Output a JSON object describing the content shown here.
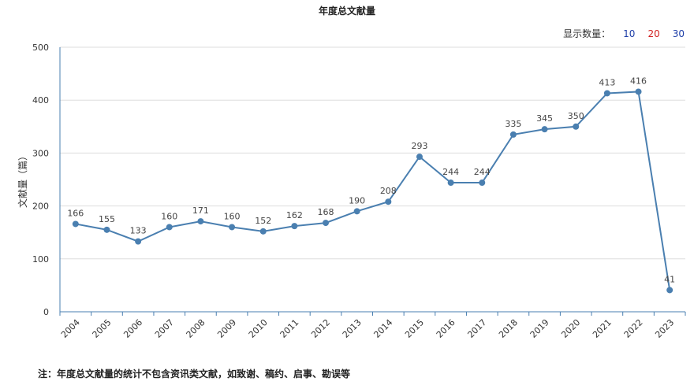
{
  "chart_data": {
    "type": "line",
    "title": "年度总文献量",
    "ylabel": "文献量（篇）",
    "xlabel": "",
    "categories": [
      "2004",
      "2005",
      "2006",
      "2007",
      "2008",
      "2009",
      "2010",
      "2011",
      "2012",
      "2013",
      "2014",
      "2015",
      "2016",
      "2017",
      "2018",
      "2019",
      "2020",
      "2021",
      "2022",
      "2023"
    ],
    "values": [
      166,
      155,
      133,
      160,
      171,
      160,
      152,
      162,
      168,
      190,
      208,
      293,
      244,
      244,
      335,
      345,
      350,
      413,
      416,
      41
    ],
    "ylim": [
      0,
      500
    ],
    "yticks": [
      "0",
      "100",
      "200",
      "300",
      "400",
      "500"
    ],
    "grid": true,
    "series_color": "#4a7fb0"
  },
  "count_selector": {
    "label": "显示数量：",
    "options": [
      "10",
      "20",
      "30"
    ]
  },
  "footnote": "注：年度总文献量的统计不包含资讯类文献，如致谢、稿约、启事、勘误等"
}
